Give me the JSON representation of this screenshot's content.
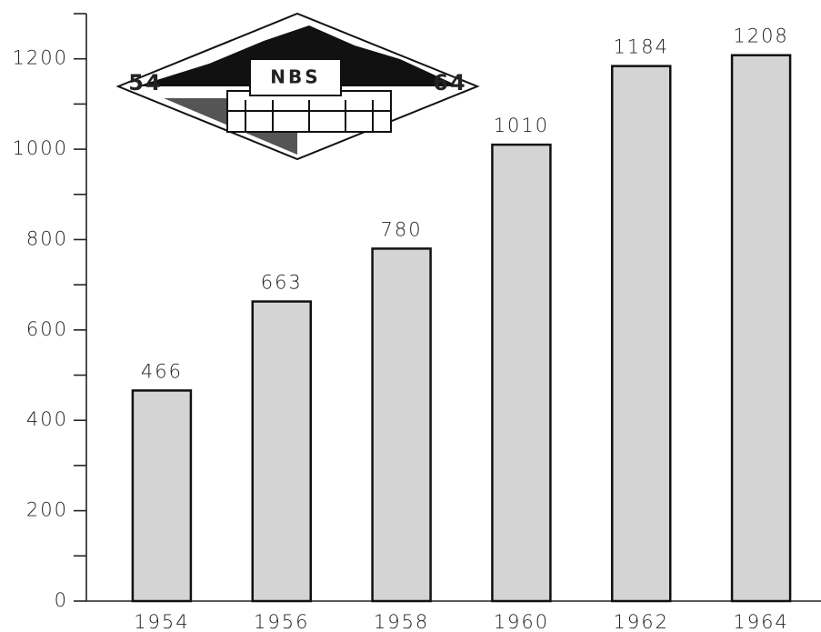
{
  "chart_data": {
    "type": "bar",
    "categories": [
      "1954",
      "1956",
      "1958",
      "1960",
      "1962",
      "1964"
    ],
    "values": [
      466,
      663,
      780,
      1010,
      1184,
      1208
    ],
    "color": "#d4d4d4",
    "ylim": [
      0,
      1300
    ],
    "yticks": [
      0,
      200,
      400,
      600,
      800,
      1000,
      1200
    ],
    "yminorticks": [
      100,
      300,
      500,
      700,
      900,
      1100,
      1300
    ],
    "logo": {
      "label": "NBS",
      "left": "54",
      "right": "64"
    }
  }
}
